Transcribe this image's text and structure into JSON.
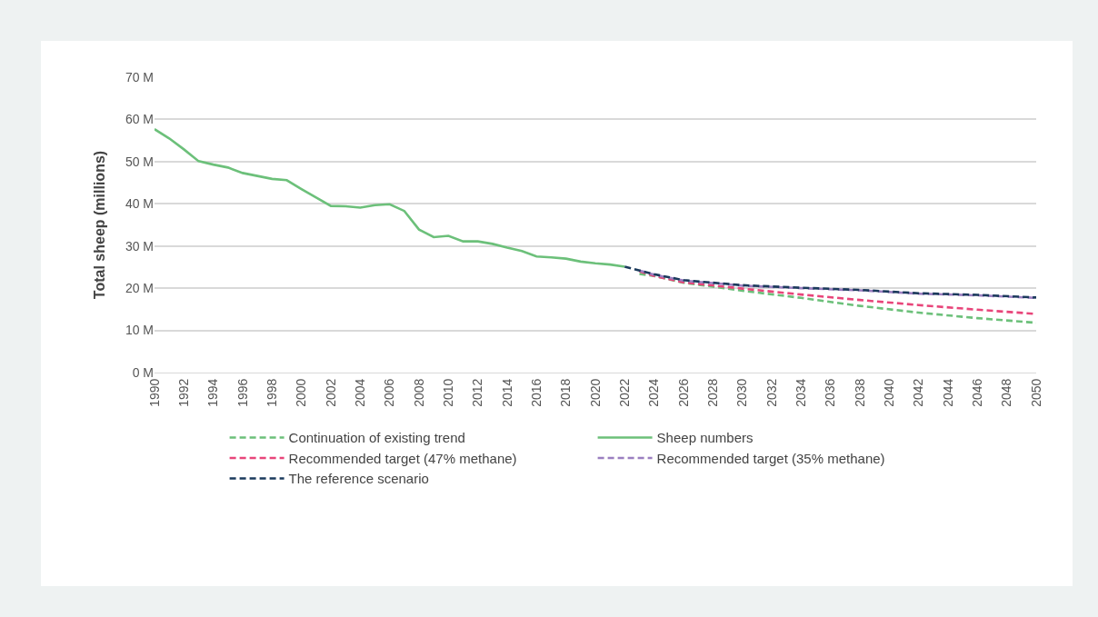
{
  "chart_data": {
    "type": "line",
    "ylabel": "Total sheep (millions)",
    "xlim": [
      1990,
      2050
    ],
    "xticks": [
      1990,
      1992,
      1994,
      1996,
      1998,
      2000,
      2002,
      2004,
      2006,
      2008,
      2010,
      2012,
      2014,
      2016,
      2018,
      2020,
      2022,
      2024,
      2026,
      2028,
      2030,
      2032,
      2034,
      2036,
      2038,
      2040,
      2042,
      2044,
      2046,
      2048,
      2050
    ],
    "ylim": [
      0,
      70
    ],
    "yticks": [
      {
        "value": 0,
        "label": "0 M"
      },
      {
        "value": 10,
        "label": "10 M"
      },
      {
        "value": 20,
        "label": "20 M"
      },
      {
        "value": 30,
        "label": "30 M"
      },
      {
        "value": 40,
        "label": "40 M"
      },
      {
        "value": 50,
        "label": "50 M"
      },
      {
        "value": 60,
        "label": "60 M"
      },
      {
        "value": 70,
        "label": "70 M"
      }
    ],
    "grid": "y",
    "legend": "bottom",
    "marker": "none",
    "series": [
      {
        "name": "Continuation of existing trend",
        "color": "#6cc07a",
        "line_style": "dashed",
        "x": [
          2023,
          2024,
          2026,
          2030,
          2034,
          2038,
          2042,
          2046,
          2050
        ],
        "values": [
          23.4,
          22.9,
          21.3,
          19.4,
          17.7,
          15.8,
          14.2,
          12.9,
          11.8
        ]
      },
      {
        "name": "Sheep numbers",
        "color": "#6cc07a",
        "line_style": "solid",
        "x": [
          1990,
          1991,
          1992,
          1993,
          1994,
          1995,
          1996,
          1997,
          1998,
          1999,
          2000,
          2001,
          2002,
          2003,
          2004,
          2005,
          2006,
          2007,
          2008,
          2009,
          2010,
          2011,
          2012,
          2013,
          2014,
          2015,
          2016,
          2017,
          2018,
          2019,
          2020,
          2021,
          2022
        ],
        "values": [
          57.7,
          55.5,
          52.9,
          50.1,
          49.3,
          48.6,
          47.3,
          46.6,
          45.9,
          45.6,
          43.5,
          41.5,
          39.5,
          39.4,
          39.1,
          39.7,
          39.9,
          38.3,
          33.9,
          32.1,
          32.4,
          31.1,
          31.1,
          30.5,
          29.6,
          28.8,
          27.5,
          27.3,
          27.0,
          26.3,
          25.9,
          25.6,
          25.1
        ]
      },
      {
        "name": "Recommended target (47% methane)",
        "color": "#e8457a",
        "line_style": "dashed",
        "x": [
          2023,
          2024,
          2026,
          2030,
          2034,
          2038,
          2042,
          2046,
          2050
        ],
        "values": [
          24.0,
          22.9,
          21.4,
          19.9,
          18.5,
          17.2,
          16.0,
          14.9,
          13.9
        ]
      },
      {
        "name": "Recommended target (35% methane)",
        "color": "#9b7fc0",
        "line_style": "dashed",
        "x": [
          2023,
          2024,
          2026,
          2030,
          2034,
          2038,
          2042,
          2046,
          2050
        ],
        "values": [
          24.2,
          23.2,
          21.8,
          20.6,
          20.0,
          19.5,
          18.7,
          18.3,
          17.7
        ]
      },
      {
        "name": "The reference scenario",
        "color": "#1b3a5c",
        "line_style": "dashed",
        "x": [
          2022,
          2024,
          2026,
          2030,
          2034,
          2038,
          2042,
          2046,
          2050
        ],
        "values": [
          25.1,
          23.3,
          21.9,
          20.7,
          20.1,
          19.6,
          18.8,
          18.4,
          17.8
        ]
      }
    ]
  }
}
